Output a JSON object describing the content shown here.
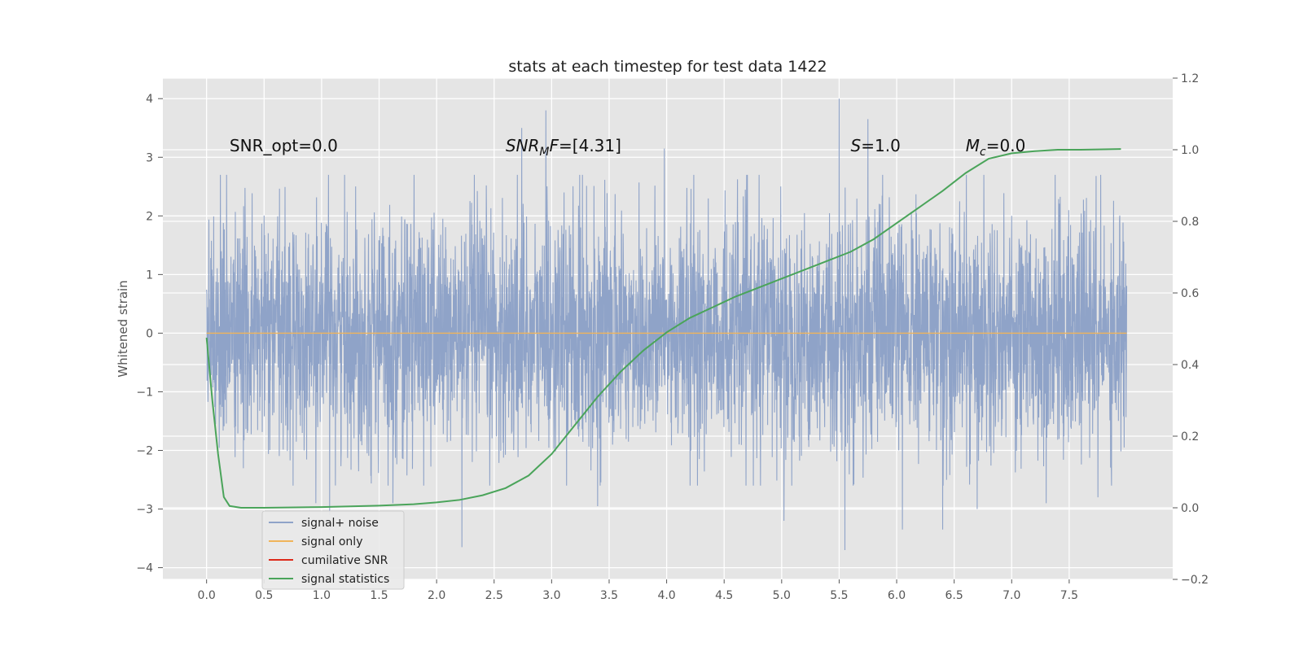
{
  "chart_data": {
    "type": "line",
    "title": "stats at each timestep for test data 1422",
    "ylabel": "Whitened strain",
    "y2label": "",
    "xlabel": "",
    "xlim": [
      -0.38,
      8.4
    ],
    "ylim": [
      -4.2,
      4.35
    ],
    "y2lim": [
      -0.2,
      1.2
    ],
    "xticks": [
      "0.0",
      "0.5",
      "1.0",
      "1.5",
      "2.0",
      "2.5",
      "3.0",
      "3.5",
      "4.0",
      "4.5",
      "5.0",
      "5.5",
      "6.0",
      "6.5",
      "7.0",
      "7.5"
    ],
    "yticks": [
      "4",
      "3",
      "2",
      "1",
      "0",
      "−1",
      "−2",
      "−3",
      "−4"
    ],
    "y2ticks": [
      "1.2",
      "1.0",
      "0.8",
      "0.6",
      "0.4",
      "0.2",
      "0.0",
      "−0.2"
    ],
    "grid": true,
    "legend_position": "lower-left",
    "annotations": [
      {
        "text": "SNR_opt=0.0",
        "x": 0.2,
        "y": 3.2
      },
      {
        "text": "SNR",
        "sub": "M",
        "after": "F=[4.31]",
        "x": 2.6,
        "y": 3.2
      },
      {
        "text": "S",
        "after": "=1.0",
        "x": 5.6,
        "y": 3.2
      },
      {
        "text": "M",
        "sub": "c",
        "after": "=0.0",
        "x": 6.6,
        "y": 3.2
      }
    ],
    "series": [
      {
        "name": "signal+ noise",
        "color": "#8fa3c8",
        "axis": "left",
        "x_range": [
          0.0,
          8.0
        ],
        "noise_std": 1.0,
        "highlights": [
          {
            "x": 0.95,
            "y": -2.9
          },
          {
            "x": 1.07,
            "y": -3.1
          },
          {
            "x": 1.62,
            "y": -2.9
          },
          {
            "x": 2.22,
            "y": -3.65
          },
          {
            "x": 2.74,
            "y": 3.5
          },
          {
            "x": 2.95,
            "y": 3.8
          },
          {
            "x": 3.4,
            "y": -2.95
          },
          {
            "x": 3.98,
            "y": 3.15
          },
          {
            "x": 5.02,
            "y": -3.2
          },
          {
            "x": 5.5,
            "y": 4.0
          },
          {
            "x": 5.55,
            "y": -3.7
          },
          {
            "x": 5.75,
            "y": 3.65
          },
          {
            "x": 6.05,
            "y": -3.35
          },
          {
            "x": 6.4,
            "y": -3.35
          },
          {
            "x": 6.7,
            "y": -3.0
          },
          {
            "x": 7.3,
            "y": -2.9
          },
          {
            "x": 7.75,
            "y": -2.8
          }
        ]
      },
      {
        "name": "signal only",
        "color": "#f0b45a",
        "axis": "left",
        "x": [
          0.0,
          8.0
        ],
        "y": [
          0.0,
          0.0
        ]
      },
      {
        "name": "cumilative SNR",
        "color": "#dd2a1a",
        "axis": "right",
        "x": [],
        "y": []
      },
      {
        "name": "signal statistics",
        "color": "#4aa45a",
        "axis": "right",
        "x": [
          0.0,
          0.05,
          0.1,
          0.15,
          0.2,
          0.3,
          0.5,
          1.0,
          1.5,
          1.8,
          2.0,
          2.2,
          2.4,
          2.6,
          2.8,
          3.0,
          3.2,
          3.4,
          3.6,
          3.8,
          4.0,
          4.2,
          4.4,
          4.6,
          4.8,
          5.0,
          5.2,
          5.4,
          5.6,
          5.8,
          6.0,
          6.2,
          6.4,
          6.6,
          6.8,
          7.0,
          7.2,
          7.4,
          7.6,
          7.95
        ],
        "y": [
          0.475,
          0.3,
          0.15,
          0.03,
          0.005,
          0.0,
          0.0,
          0.002,
          0.006,
          0.01,
          0.015,
          0.022,
          0.035,
          0.055,
          0.09,
          0.15,
          0.23,
          0.31,
          0.38,
          0.44,
          0.49,
          0.53,
          0.56,
          0.59,
          0.615,
          0.64,
          0.665,
          0.69,
          0.715,
          0.75,
          0.795,
          0.84,
          0.885,
          0.935,
          0.975,
          0.99,
          0.996,
          1.0,
          1.0,
          1.002
        ]
      }
    ]
  }
}
